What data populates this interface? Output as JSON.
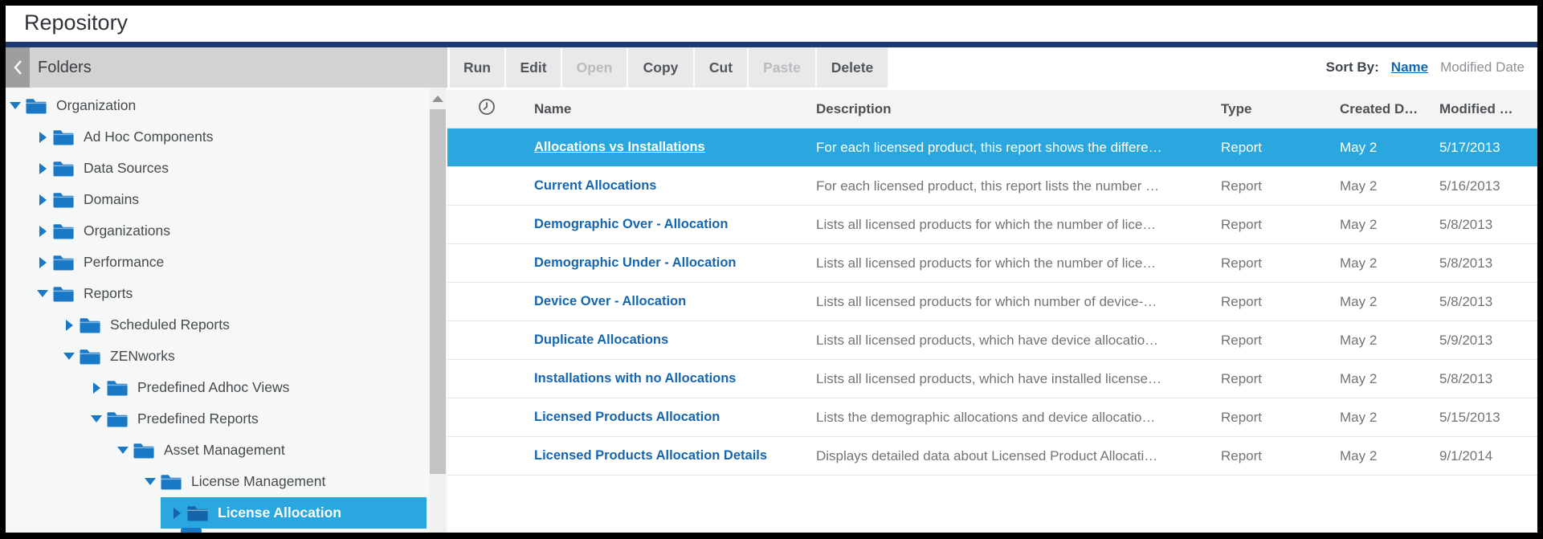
{
  "window": {
    "title": "Repository"
  },
  "colors": {
    "accent": "#29a7de",
    "link": "#1566b0",
    "navy": "#1b3a70",
    "folder": "#1a79c6"
  },
  "folders_panel": {
    "title": "Folders",
    "collapse_icon": "chevron-left-icon",
    "tree": [
      {
        "label": "Organization",
        "level": 0,
        "state": "expanded",
        "selected": false
      },
      {
        "label": "Ad Hoc Components",
        "level": 1,
        "state": "collapsed",
        "selected": false
      },
      {
        "label": "Data Sources",
        "level": 1,
        "state": "collapsed",
        "selected": false
      },
      {
        "label": "Domains",
        "level": 1,
        "state": "collapsed",
        "selected": false
      },
      {
        "label": "Organizations",
        "level": 1,
        "state": "collapsed",
        "selected": false
      },
      {
        "label": "Performance",
        "level": 1,
        "state": "collapsed",
        "selected": false
      },
      {
        "label": "Reports",
        "level": 1,
        "state": "expanded",
        "selected": false
      },
      {
        "label": "Scheduled Reports",
        "level": 2,
        "state": "collapsed",
        "selected": false
      },
      {
        "label": "ZENworks",
        "level": 2,
        "state": "expanded",
        "selected": false
      },
      {
        "label": "Predefined Adhoc Views",
        "level": 3,
        "state": "collapsed",
        "selected": false
      },
      {
        "label": "Predefined Reports",
        "level": 3,
        "state": "expanded",
        "selected": false
      },
      {
        "label": "Asset Management",
        "level": 4,
        "state": "expanded",
        "selected": false
      },
      {
        "label": "License Management",
        "level": 5,
        "state": "expanded",
        "selected": false
      },
      {
        "label": "License Allocation",
        "level": 6,
        "state": "collapsed",
        "selected": true
      }
    ],
    "clipped_next_item_visible": true
  },
  "toolbar": {
    "buttons": [
      {
        "label": "Run",
        "enabled": true
      },
      {
        "label": "Edit",
        "enabled": true
      },
      {
        "label": "Open",
        "enabled": false
      },
      {
        "label": "Copy",
        "enabled": true
      },
      {
        "label": "Cut",
        "enabled": true
      },
      {
        "label": "Paste",
        "enabled": false
      },
      {
        "label": "Delete",
        "enabled": true
      }
    ],
    "sort": {
      "label": "Sort By:",
      "options": [
        {
          "label": "Name",
          "active": true
        },
        {
          "label": "Modified Date",
          "active": false
        }
      ]
    }
  },
  "table": {
    "columns": {
      "scheduled": "clock-icon",
      "name": "Name",
      "description": "Description",
      "type": "Type",
      "created": "Created D…",
      "modified": "Modified …"
    },
    "rows": [
      {
        "name": "Allocations vs Installations",
        "description": "For each licensed product, this report shows the differe…",
        "type": "Report",
        "created": "May 2",
        "modified": "5/17/2013",
        "selected": true
      },
      {
        "name": "Current Allocations",
        "description": "For each licensed product, this report lists the number …",
        "type": "Report",
        "created": "May 2",
        "modified": "5/16/2013",
        "selected": false
      },
      {
        "name": "Demographic Over - Allocation",
        "description": "Lists all licensed products for which the number of lice…",
        "type": "Report",
        "created": "May 2",
        "modified": "5/8/2013",
        "selected": false
      },
      {
        "name": "Demographic Under - Allocation",
        "description": "Lists all licensed products for which the number of lice…",
        "type": "Report",
        "created": "May 2",
        "modified": "5/8/2013",
        "selected": false
      },
      {
        "name": "Device Over - Allocation",
        "description": "Lists all licensed products for which number of device-…",
        "type": "Report",
        "created": "May 2",
        "modified": "5/8/2013",
        "selected": false
      },
      {
        "name": "Duplicate Allocations",
        "description": "Lists all licensed products, which have device allocatio…",
        "type": "Report",
        "created": "May 2",
        "modified": "5/9/2013",
        "selected": false
      },
      {
        "name": "Installations with no Allocations",
        "description": "Lists all licensed products, which have installed license…",
        "type": "Report",
        "created": "May 2",
        "modified": "5/8/2013",
        "selected": false
      },
      {
        "name": "Licensed Products Allocation",
        "description": "Lists the demographic allocations and device allocatio…",
        "type": "Report",
        "created": "May 2",
        "modified": "5/15/2013",
        "selected": false
      },
      {
        "name": "Licensed Products Allocation Details",
        "description": "Displays detailed data about Licensed Product Allocati…",
        "type": "Report",
        "created": "May 2",
        "modified": "9/1/2014",
        "selected": false
      }
    ]
  }
}
